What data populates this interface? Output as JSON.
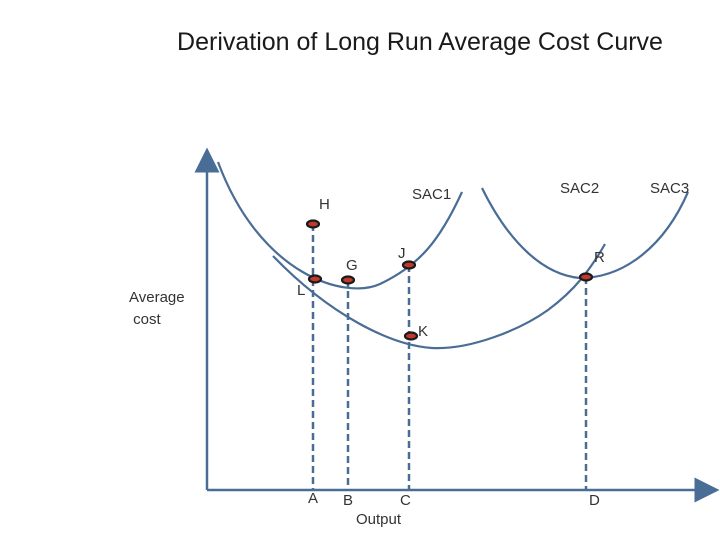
{
  "title": "Derivation of Long Run Average Cost Curve",
  "axes": {
    "y_label": [
      "Average",
      " cost"
    ],
    "x_label": "Output"
  },
  "curves": {
    "sac1": "SAC1",
    "sac2": "SAC2",
    "sac3": "SAC3"
  },
  "points": {
    "h": "H",
    "l": "L",
    "g": "G",
    "j": "J",
    "k": "K",
    "r": "R"
  },
  "ticks": {
    "a": "A",
    "b": "B",
    "c": "C",
    "d": "D"
  },
  "colors": {
    "curve": "#4a6d96",
    "point_fill": "#c0392b",
    "point_outline": "#1a1a1a"
  }
}
